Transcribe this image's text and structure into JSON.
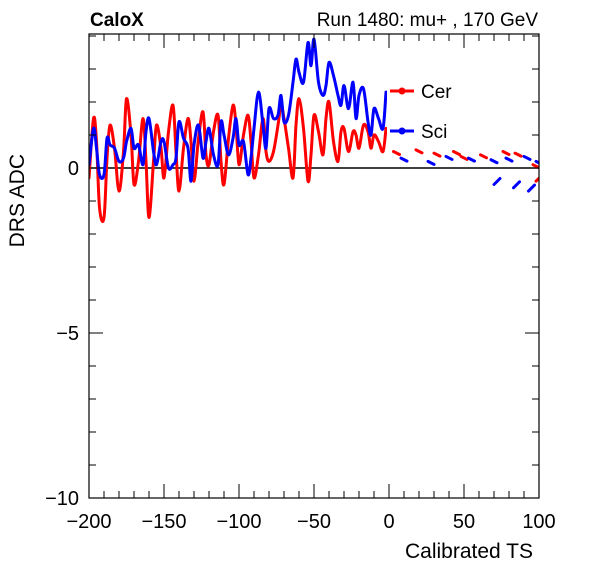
{
  "header": {
    "left": "CaloX",
    "right": "Run 1480: mu+ , 170 GeV"
  },
  "chart_data": {
    "type": "line",
    "xlabel": "Calibrated TS",
    "ylabel": "DRS ADC",
    "xlim": [
      -200,
      100
    ],
    "ylim": [
      -10,
      4
    ],
    "xticks": [
      -200,
      -150,
      -100,
      -50,
      0,
      50,
      100
    ],
    "xtick_labels": [
      "−200",
      "−150",
      "−100",
      "−50",
      "0",
      "50",
      "100"
    ],
    "yticks": [
      -10,
      -5,
      0
    ],
    "ytick_labels": [
      "−10",
      "−5",
      "0"
    ],
    "zero_line": true,
    "grid": false,
    "legend_position": "top-right",
    "series": [
      {
        "name": "Cer",
        "color": "#ff0000",
        "x": [
          -200,
          -197,
          -195,
          -193,
          -190,
          -188,
          -186,
          -183,
          -180,
          -177,
          -175,
          -172,
          -170,
          -167,
          -164,
          -162,
          -160,
          -157,
          -155,
          -152,
          -150,
          -147,
          -144,
          -142,
          -140,
          -137,
          -134,
          -132,
          -130,
          -127,
          -124,
          -122,
          -120,
          -117,
          -114,
          -112,
          -110,
          -107,
          -104,
          -102,
          -100,
          -97,
          -94,
          -92,
          -90,
          -87,
          -84,
          -82,
          -80,
          -77,
          -74,
          -72,
          -70,
          -67,
          -64,
          -62,
          -60,
          -57,
          -54,
          -52,
          -50,
          -47,
          -44,
          -42,
          -40,
          -37,
          -34,
          -32,
          -30,
          -27,
          -24,
          -22,
          -20,
          -17,
          -14,
          -12,
          -10,
          -7,
          -4,
          -2
        ],
        "y": [
          -0.3,
          1.5,
          0.8,
          -1.2,
          -1.5,
          0.3,
          1.3,
          0.6,
          -0.7,
          0.5,
          2.1,
          1.0,
          -0.5,
          0.2,
          1.5,
          0.2,
          -1.5,
          0.2,
          1.3,
          0.6,
          -0.3,
          1.1,
          1.9,
          0.5,
          -0.7,
          0.6,
          1.5,
          0.8,
          -0.4,
          0.9,
          1.7,
          0.4,
          0.1,
          1.1,
          1.6,
          0.2,
          -0.5,
          0.9,
          1.9,
          1.3,
          0.1,
          1.0,
          1.6,
          0.8,
          -0.3,
          0.4,
          1.5,
          0.5,
          0.2,
          0.5,
          1.3,
          1.9,
          1.5,
          0.6,
          -0.3,
          1.3,
          2.1,
          1.2,
          -0.4,
          0.4,
          1.6,
          1.1,
          0.4,
          1.5,
          2.0,
          0.8,
          0.2,
          1.1,
          1.2,
          0.5,
          1.1,
          1.0,
          0.6,
          1.3,
          1.1,
          0.6,
          1.0,
          0.8,
          0.5,
          1.2
        ]
      },
      {
        "name": "Sci",
        "color": "#0000ff",
        "x": [
          -200,
          -197,
          -195,
          -193,
          -190,
          -188,
          -186,
          -183,
          -180,
          -177,
          -175,
          -172,
          -170,
          -167,
          -164,
          -162,
          -160,
          -157,
          -155,
          -152,
          -150,
          -147,
          -144,
          -142,
          -140,
          -137,
          -134,
          -132,
          -130,
          -127,
          -124,
          -122,
          -120,
          -117,
          -114,
          -112,
          -110,
          -107,
          -104,
          -102,
          -100,
          -97,
          -94,
          -92,
          -90,
          -87,
          -84,
          -82,
          -80,
          -77,
          -74,
          -72,
          -70,
          -67,
          -64,
          -62,
          -60,
          -57,
          -54,
          -52,
          -50,
          -47,
          -44,
          -42,
          -40,
          -37,
          -34,
          -32,
          -30,
          -27,
          -24,
          -22,
          -20,
          -17,
          -14,
          -12,
          -10,
          -7,
          -4,
          -2
        ],
        "y": [
          0.1,
          1.2,
          0.6,
          -0.2,
          -0.2,
          0.9,
          0.7,
          0.6,
          0.2,
          0.3,
          0.8,
          1.2,
          0.6,
          0.7,
          0.1,
          1.1,
          1.5,
          0.5,
          0.1,
          0.8,
          0.8,
          0.0,
          0.1,
          0.3,
          1.4,
          0.9,
          0.6,
          -0.4,
          0.7,
          1.3,
          0.3,
          0.8,
          1.2,
          0.4,
          0.1,
          1.4,
          1.0,
          0.4,
          0.9,
          1.5,
          0.7,
          0.8,
          -0.2,
          0.3,
          1.2,
          2.3,
          1.3,
          0.6,
          1.8,
          1.5,
          1.6,
          2.2,
          1.4,
          1.6,
          2.6,
          3.3,
          2.9,
          2.6,
          3.8,
          3.1,
          3.9,
          2.6,
          2.2,
          2.5,
          3.2,
          2.8,
          2.2,
          1.9,
          2.5,
          1.8,
          2.6,
          1.5,
          2.2,
          2.4,
          1.4,
          1.0,
          1.8,
          1.5,
          1.2,
          2.3
        ]
      }
    ],
    "sparse_segments": {
      "Cer": [
        [
          5,
          0.5
        ],
        [
          20,
          0.55
        ],
        [
          32,
          0.45
        ],
        [
          45,
          0.5
        ],
        [
          50,
          0.35
        ],
        [
          63,
          0.4
        ],
        [
          78,
          0.5
        ],
        [
          86,
          0.45
        ],
        [
          98,
          0.1
        ],
        [
          100,
          -0.4
        ]
      ],
      "Sci": [
        [
          10,
          0.3
        ],
        [
          28,
          0.2
        ],
        [
          40,
          0.35
        ],
        [
          55,
          0.3
        ],
        [
          70,
          0.25
        ],
        [
          72,
          -0.5
        ],
        [
          80,
          0.3
        ],
        [
          85,
          -0.6
        ],
        [
          92,
          0.35
        ],
        [
          95,
          -0.7
        ],
        [
          100,
          0.2
        ]
      ]
    }
  }
}
